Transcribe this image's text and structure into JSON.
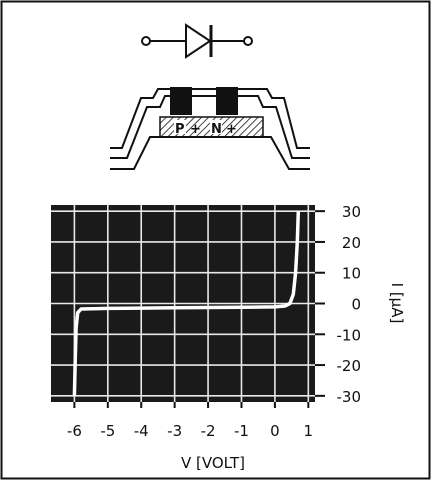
{
  "diagram": {
    "diode_symbol": "diode-symbol",
    "cross_section": {
      "p_label": "P",
      "n_label": "N",
      "plus_label": "+"
    }
  },
  "chart_data": {
    "type": "line",
    "title": "",
    "xlabel": "V [VOLT]",
    "ylabel": "I [µA]",
    "xlim": [
      -6.7,
      1.2
    ],
    "ylim": [
      -32,
      32
    ],
    "x_ticks": [
      "-6",
      "-5",
      "-4",
      "-3",
      "-2",
      "-1",
      "0",
      "1"
    ],
    "y_ticks": [
      "30",
      "20",
      "10",
      "0",
      "-10",
      "-20",
      "-30"
    ],
    "grid": true,
    "background": "#1a1a1a",
    "series": [
      {
        "color": "#ffffff",
        "points": [
          [
            -6.0,
            -30
          ],
          [
            -5.98,
            -20
          ],
          [
            -5.95,
            -8
          ],
          [
            -5.9,
            -3
          ],
          [
            -5.8,
            -1.8
          ],
          [
            -5.0,
            -1.6
          ],
          [
            -4.0,
            -1.5
          ],
          [
            -3.0,
            -1.4
          ],
          [
            -2.0,
            -1.3
          ],
          [
            -1.0,
            -1.2
          ],
          [
            0.0,
            -1.1
          ],
          [
            0.3,
            -0.8
          ],
          [
            0.45,
            0
          ],
          [
            0.55,
            3
          ],
          [
            0.62,
            10
          ],
          [
            0.67,
            20
          ],
          [
            0.7,
            30
          ]
        ]
      }
    ]
  }
}
